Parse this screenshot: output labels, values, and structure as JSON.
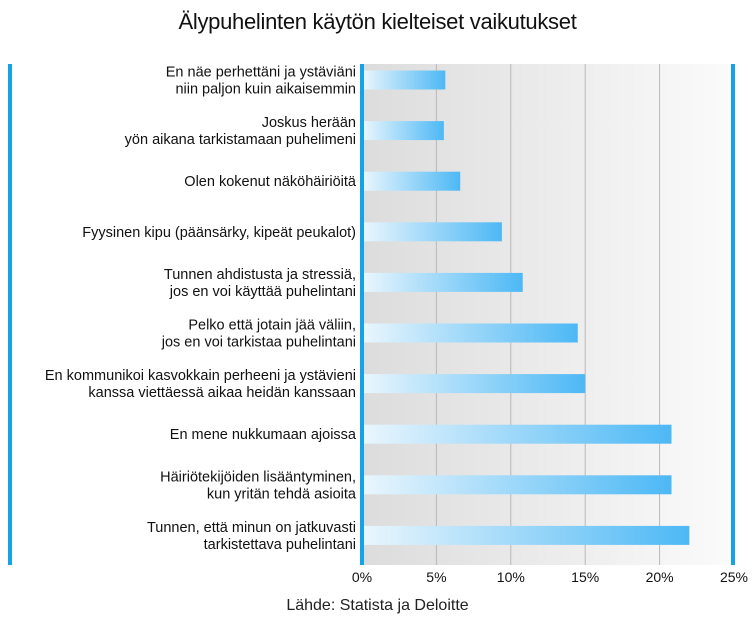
{
  "chart_data": {
    "type": "bar",
    "orientation": "horizontal",
    "title": "Älypuhelinten käytön kielteiset vaikutukset",
    "source": "Lähde: Statista ja Deloitte",
    "categories": [
      [
        "En näe perhettäni ja ystäviäni",
        "niin paljon kuin aikaisemmin"
      ],
      [
        "Joskus herään",
        "yön aikana tarkistamaan puhelimeni"
      ],
      [
        "Olen kokenut näköhäiriöitä"
      ],
      [
        "Fyysinen kipu (päänsärky, kipeät peukalot)"
      ],
      [
        "Tunnen ahdistusta ja stressiä,",
        "jos en voi käyttää puhelintani"
      ],
      [
        "Pelko että jotain jää väliin,",
        "jos en voi tarkistaa puhelintani"
      ],
      [
        "En kommunikoi kasvokkain perheeni ja ystävieni",
        "kanssa viettäessä aikaa heidän kanssaan"
      ],
      [
        "En mene nukkumaan ajoissa"
      ],
      [
        "Häiriötekijöiden lisääntyminen,",
        "kun yritän tehdä asioita"
      ],
      [
        "Tunnen, että minun on jatkuvasti",
        "tarkistettava puhelintani"
      ]
    ],
    "values": [
      5.6,
      5.5,
      6.6,
      9.4,
      10.8,
      14.5,
      15.0,
      20.8,
      20.8,
      22.0
    ],
    "xlim": [
      0,
      25
    ],
    "ticks": [
      0,
      5,
      10,
      15,
      20,
      25
    ],
    "tick_labels": [
      "0%",
      "5%",
      "10%",
      "15%",
      "20%",
      "25%"
    ],
    "grid": true,
    "colors": {
      "bar_start": "#eaf6fd",
      "bar_end": "#4db8f5",
      "frame": "#14a3e6",
      "plot_bg_start": "#dcdcdc",
      "plot_bg_end": "#fbfbfb",
      "grid": "#b8b8b8"
    }
  }
}
